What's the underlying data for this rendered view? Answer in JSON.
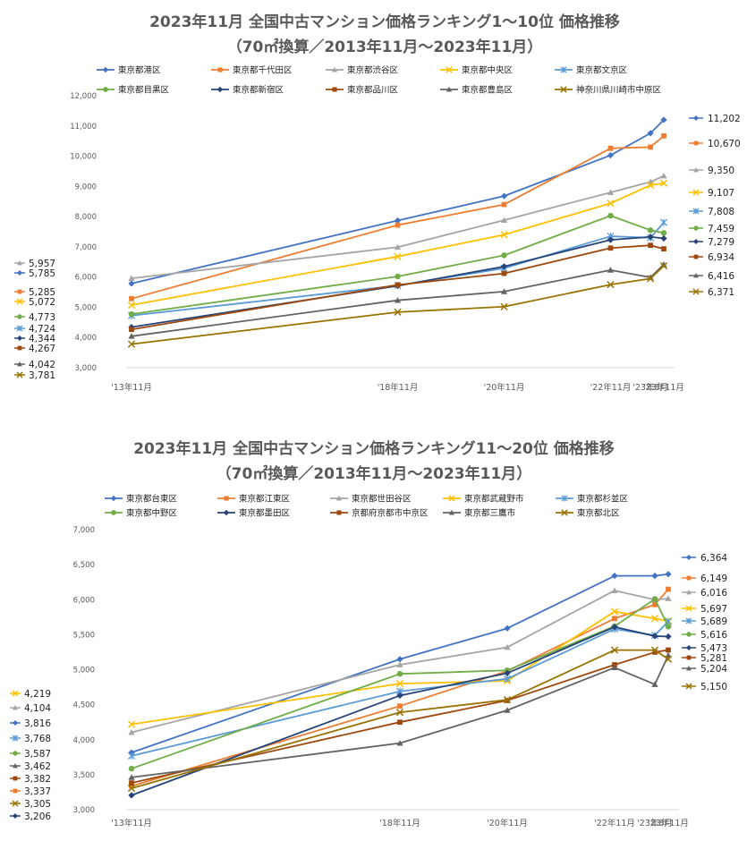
{
  "chart_data": [
    {
      "type": "line",
      "title": "2023年11月 全国中古マンション価格ランキング1～10位 価格推移",
      "subtitle": "（70㎡換算／2013年11月～2023年11月）",
      "categories": [
        "'13年11月",
        "'18年11月",
        "'20年11月",
        "'22年11月",
        "'23年8月",
        "'23年11月"
      ],
      "x": [
        2013.83,
        2018.83,
        2020.83,
        2022.83,
        2023.58,
        2023.83
      ],
      "ylim": [
        3000,
        12000
      ],
      "yticks": [
        "3,000",
        "4,000",
        "5,000",
        "6,000",
        "7,000",
        "8,000",
        "9,000",
        "10,000",
        "11,000",
        "12,000"
      ],
      "start_labels": [
        "5,957",
        "5,785",
        "5,285",
        "5,072",
        "4,773",
        "4,724",
        "4,344",
        "4,267",
        "4,042",
        "3,781"
      ],
      "end_labels": [
        "11,202",
        "10,670",
        "9,350",
        "9,107",
        "7,808",
        "7,459",
        "7,279",
        "6,934",
        "6,416",
        "6,371"
      ],
      "series": [
        {
          "name": "東京都港区",
          "color": "#4472C4",
          "marker": "diamond",
          "values": [
            5785,
            7870,
            8680,
            10030,
            10760,
            11202
          ]
        },
        {
          "name": "東京都千代田区",
          "color": "#ED7D31",
          "marker": "square",
          "values": [
            5285,
            7720,
            8400,
            10260,
            10300,
            10670
          ]
        },
        {
          "name": "東京都渋谷区",
          "color": "#A5A5A5",
          "marker": "triangle",
          "values": [
            5957,
            6990,
            7880,
            8800,
            9150,
            9350
          ]
        },
        {
          "name": "東京都中央区",
          "color": "#FFC000",
          "marker": "x",
          "values": [
            5072,
            6680,
            7400,
            8440,
            9040,
            9107
          ]
        },
        {
          "name": "東京都文京区",
          "color": "#5B9BD5",
          "marker": "star",
          "values": [
            4724,
            5720,
            6290,
            7350,
            7300,
            7808
          ]
        },
        {
          "name": "東京都目黒区",
          "color": "#70AD47",
          "marker": "circle",
          "values": [
            4773,
            6020,
            6720,
            8030,
            7550,
            7459
          ]
        },
        {
          "name": "東京都新宿区",
          "color": "#264478",
          "marker": "diamond",
          "values": [
            4344,
            5710,
            6350,
            7230,
            7330,
            7279
          ]
        },
        {
          "name": "東京都品川区",
          "color": "#9E480E",
          "marker": "square",
          "values": [
            4267,
            5740,
            6120,
            6960,
            7050,
            6934
          ]
        },
        {
          "name": "東京都豊島区",
          "color": "#636363",
          "marker": "triangle",
          "values": [
            4042,
            5230,
            5520,
            6230,
            5990,
            6416
          ]
        },
        {
          "name": "神奈川県川崎市中原区",
          "color": "#997300",
          "marker": "x",
          "values": [
            3781,
            4840,
            5020,
            5750,
            5950,
            6371
          ]
        }
      ]
    },
    {
      "type": "line",
      "title": "2023年11月 全国中古マンション価格ランキング11～20位 価格推移",
      "subtitle": "（70㎡換算／2013年11月～2023年11月）",
      "categories": [
        "'13年11月",
        "'18年11月",
        "'20年11月",
        "'22年11月",
        "'23年8月",
        "'23年11月"
      ],
      "x": [
        2013.83,
        2018.83,
        2020.83,
        2022.83,
        2023.58,
        2023.83
      ],
      "ylim": [
        3000,
        7000
      ],
      "yticks": [
        "3,000",
        "3,500",
        "4,000",
        "4,500",
        "5,000",
        "5,500",
        "6,000",
        "6,500",
        "7,000"
      ],
      "start_labels": [
        "4,219",
        "4,104",
        "3,816",
        "3,768",
        "3,587",
        "3,462",
        "3,382",
        "3,337",
        "3,305",
        "3,206"
      ],
      "end_labels": [
        "6,364",
        "6,149",
        "6,016",
        "5,697",
        "5,689",
        "5,616",
        "5,473",
        "5,281",
        "5,204",
        "5,150"
      ],
      "series": [
        {
          "name": "東京都台東区",
          "color": "#4472C4",
          "marker": "diamond",
          "values": [
            3816,
            5150,
            5590,
            6340,
            6340,
            6364
          ]
        },
        {
          "name": "東京都江東区",
          "color": "#ED7D31",
          "marker": "square",
          "values": [
            3337,
            4480,
            4980,
            5730,
            5930,
            6149
          ]
        },
        {
          "name": "東京都世田谷区",
          "color": "#A5A5A5",
          "marker": "triangle",
          "values": [
            4104,
            5070,
            5320,
            6130,
            6000,
            6016
          ]
        },
        {
          "name": "東京都武蔵野市",
          "color": "#FFC000",
          "marker": "x",
          "values": [
            4219,
            4800,
            4840,
            5830,
            5730,
            5697
          ]
        },
        {
          "name": "東京都杉並区",
          "color": "#5B9BD5",
          "marker": "star",
          "values": [
            3768,
            4690,
            4870,
            5580,
            5490,
            5689
          ]
        },
        {
          "name": "東京都中野区",
          "color": "#70AD47",
          "marker": "circle",
          "values": [
            3587,
            4940,
            4990,
            5620,
            6010,
            5616
          ]
        },
        {
          "name": "東京都墨田区",
          "color": "#264478",
          "marker": "diamond",
          "values": [
            3206,
            4630,
            4950,
            5610,
            5480,
            5473
          ]
        },
        {
          "name": "京都府京都市中京区",
          "color": "#9E480E",
          "marker": "square",
          "values": [
            3382,
            4250,
            4560,
            5070,
            5250,
            5281
          ]
        },
        {
          "name": "東京都三鷹市",
          "color": "#636363",
          "marker": "triangle",
          "values": [
            3462,
            3950,
            4420,
            5030,
            4790,
            5204
          ]
        },
        {
          "name": "東京都北区",
          "color": "#997300",
          "marker": "x",
          "values": [
            3305,
            4390,
            4570,
            5280,
            5280,
            5150
          ]
        }
      ]
    }
  ]
}
